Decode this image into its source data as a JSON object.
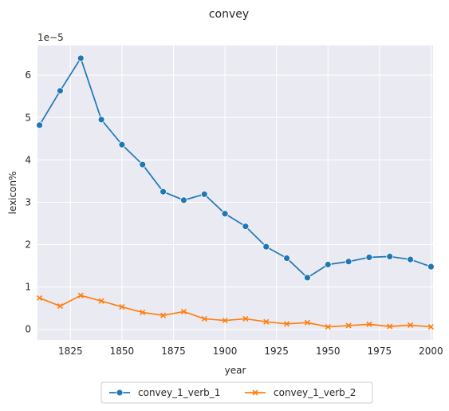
{
  "chart_data": {
    "type": "line",
    "title": "convey",
    "xlabel": "year",
    "ylabel": "lexicon%",
    "y_scale_label": "1e−5",
    "xlim": [
      1809,
      2001
    ],
    "ylim": [
      -0.25,
      6.7
    ],
    "x_ticks": [
      1825,
      1850,
      1875,
      1900,
      1925,
      1950,
      1975,
      2000
    ],
    "y_ticks": [
      0,
      1,
      2,
      3,
      4,
      5,
      6
    ],
    "grid": true,
    "legend_placement": "bottom-center",
    "x": [
      1810,
      1820,
      1830,
      1840,
      1850,
      1860,
      1870,
      1880,
      1890,
      1900,
      1910,
      1920,
      1930,
      1940,
      1950,
      1960,
      1970,
      1980,
      1990,
      2000
    ],
    "series": [
      {
        "name": "convey_1_verb_1",
        "color": "#1f77b4",
        "marker": "circle",
        "values": [
          4.82,
          5.63,
          6.4,
          4.95,
          4.36,
          3.89,
          3.25,
          3.05,
          3.19,
          2.73,
          2.43,
          1.95,
          1.68,
          1.22,
          1.53,
          1.6,
          1.7,
          1.72,
          1.65,
          1.48
        ]
      },
      {
        "name": "convey_1_verb_2",
        "color": "#ff7f0e",
        "marker": "x",
        "values": [
          0.74,
          0.55,
          0.8,
          0.67,
          0.53,
          0.4,
          0.33,
          0.42,
          0.25,
          0.21,
          0.25,
          0.18,
          0.13,
          0.16,
          0.06,
          0.09,
          0.12,
          0.07,
          0.1,
          0.06
        ]
      }
    ]
  }
}
